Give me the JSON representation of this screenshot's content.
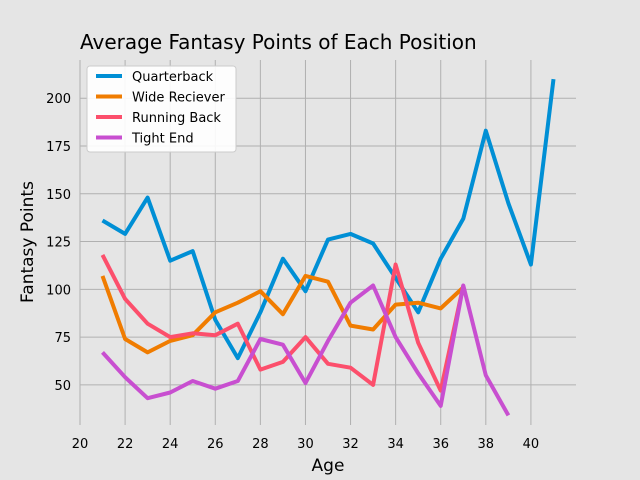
{
  "chart_data": {
    "type": "line",
    "title": "Average Fantasy Points of Each Position",
    "xlabel": "Age",
    "ylabel": "Fantasy Points",
    "xlim": [
      20,
      42
    ],
    "ylim": [
      29,
      220
    ],
    "xticks": [
      20,
      22,
      24,
      26,
      28,
      30,
      32,
      34,
      36,
      38,
      40
    ],
    "yticks": [
      50,
      75,
      100,
      125,
      150,
      175,
      200
    ],
    "grid": true,
    "legend_position": "top-left",
    "series": [
      {
        "name": "Quarterback",
        "color": "#008fd5",
        "x": [
          21,
          22,
          23,
          24,
          25,
          26,
          27,
          28,
          29,
          30,
          31,
          32,
          33,
          34,
          35,
          36,
          37,
          38,
          39,
          40,
          41
        ],
        "y": [
          136,
          129,
          148,
          115,
          120,
          84,
          64,
          88,
          116,
          99,
          126,
          129,
          124,
          106,
          88,
          116,
          137,
          183,
          145,
          113,
          210
        ]
      },
      {
        "name": "Wide Reciever",
        "color": "#fc4f30",
        "x": [
          21,
          22,
          23,
          24,
          25,
          26,
          27,
          28,
          29,
          30,
          31,
          32,
          33,
          34,
          35,
          36,
          37
        ],
        "y": [
          107,
          74,
          67,
          73,
          76,
          88,
          93,
          99,
          87,
          107,
          104,
          81,
          79,
          92,
          93,
          90,
          101
        ]
      },
      {
        "name": "Running Back",
        "color": "#e5ae38",
        "x": [
          21,
          22,
          23,
          24,
          25,
          26,
          27,
          28,
          29,
          30,
          31,
          32,
          33,
          34,
          35,
          36,
          37
        ],
        "y": [
          118,
          95,
          82,
          75,
          77,
          76,
          82,
          58,
          62,
          75,
          61,
          59,
          50,
          113,
          72,
          47,
          102
        ]
      },
      {
        "name": "Tight End",
        "color": "#6d904f",
        "x": [
          21,
          22,
          23,
          24,
          25,
          26,
          27,
          28,
          29,
          30,
          31,
          32,
          33,
          34,
          35,
          36,
          37,
          38,
          39
        ],
        "y": [
          67,
          54,
          43,
          46,
          52,
          48,
          52,
          74,
          71,
          51,
          73,
          93,
          102,
          75,
          56,
          39,
          102,
          55,
          34
        ]
      }
    ]
  }
}
